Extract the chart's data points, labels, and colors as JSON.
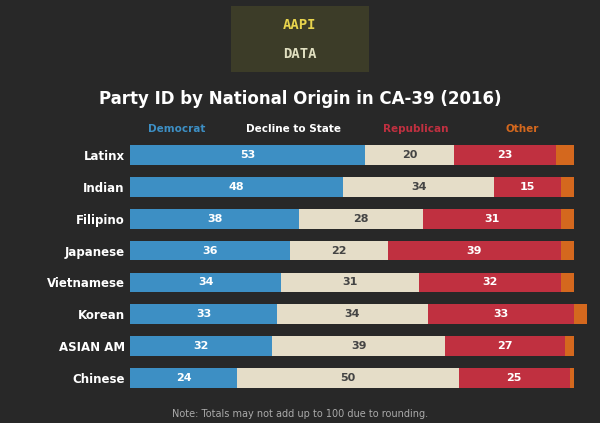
{
  "title": "Party ID by National Origin in CA-39 (2016)",
  "note": "Note: Totals may not add up to 100 due to rounding.",
  "background_color": "#282828",
  "logo_bg_color": "#3c3c28",
  "logo_line1": "AAPI",
  "logo_line2": "DATA",
  "logo_color1": "#e8d44d",
  "logo_color2": "#e0dfc0",
  "title_color": "#ffffff",
  "title_fontsize": 12,
  "categories": [
    "Latinx",
    "Indian",
    "Filipino",
    "Japanese",
    "Vietnamese",
    "Korean",
    "ASIAN AM",
    "Chinese"
  ],
  "democrat": [
    53,
    48,
    38,
    36,
    34,
    33,
    32,
    24
  ],
  "decline": [
    20,
    34,
    28,
    22,
    31,
    34,
    39,
    50
  ],
  "republican": [
    23,
    15,
    31,
    39,
    32,
    33,
    27,
    25
  ],
  "other": [
    4,
    3,
    3,
    3,
    3,
    3,
    2,
    1
  ],
  "dem_color": "#3d8fc4",
  "decline_color": "#e5ddc8",
  "rep_color": "#c03040",
  "other_color": "#d4681e",
  "dem_label_color": "#3d8fc4",
  "rep_label_color": "#c03040",
  "other_label_color": "#d4681e",
  "bar_text_color": "#ffffff",
  "decline_text_color": "#444444",
  "legend_democrat": "Democrat",
  "legend_decline": "Decline to State",
  "legend_republican": "Republican",
  "legend_other": "Other",
  "note_color": "#aaaaaa",
  "note_fontsize": 7,
  "ylabel_fontsize": 8.5,
  "bar_height": 0.62,
  "bar_fontsize": 8
}
